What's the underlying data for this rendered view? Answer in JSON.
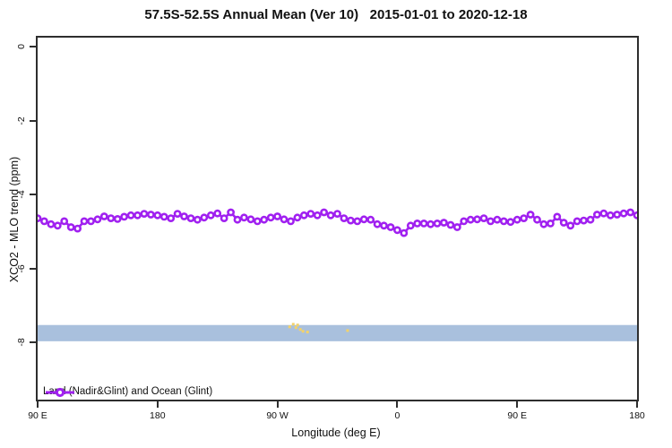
{
  "title": "57.5S-52.5S Annual Mean (Ver 10)   2015-01-01 to 2020-12-18",
  "colors": {
    "series": "#a020f0",
    "reference_band": "#a9c0dd",
    "extra_scatter": "#f3d26a",
    "frame": "#2e2e2e",
    "text": "#111111",
    "background": "#ffffff"
  },
  "chart_data": {
    "type": "line",
    "title": "57.5S-52.5S Annual Mean (Ver 10)   2015-01-01 to 2020-12-18",
    "xlabel": "Longitude (deg E)",
    "ylabel": "XCO2 - MLO trend (ppm)",
    "xlim": [
      90,
      540
    ],
    "ylim_top": 0.25,
    "ylim_bottom": -9.55,
    "grid": false,
    "x_ticks": [
      {
        "lon": 90,
        "label": "90 E"
      },
      {
        "lon": 180,
        "label": "180"
      },
      {
        "lon": 270,
        "label": "90 W"
      },
      {
        "lon": 360,
        "label": "0"
      },
      {
        "lon": 450,
        "label": "90 E"
      },
      {
        "lon": 540,
        "label": "180"
      }
    ],
    "y_ticks": [
      {
        "value": 0,
        "label": "0"
      },
      {
        "value": -2,
        "label": "-2"
      },
      {
        "value": -4,
        "label": "-4"
      },
      {
        "value": -6,
        "label": "-6"
      },
      {
        "value": -8,
        "label": "-8"
      }
    ],
    "series": [
      {
        "name": "Land (Nadir&Glint) and Ocean (Glint)",
        "color": "#a020f0",
        "marker": "open-circle",
        "x_start": 90,
        "x_step": 5,
        "values": [
          -4.64,
          -4.72,
          -4.8,
          -4.84,
          -4.72,
          -4.88,
          -4.92,
          -4.72,
          -4.72,
          -4.67,
          -4.59,
          -4.64,
          -4.66,
          -4.6,
          -4.56,
          -4.56,
          -4.52,
          -4.54,
          -4.56,
          -4.6,
          -4.64,
          -4.52,
          -4.59,
          -4.64,
          -4.68,
          -4.62,
          -4.56,
          -4.51,
          -4.64,
          -4.48,
          -4.68,
          -4.62,
          -4.67,
          -4.72,
          -4.68,
          -4.62,
          -4.59,
          -4.67,
          -4.72,
          -4.62,
          -4.56,
          -4.52,
          -4.56,
          -4.48,
          -4.56,
          -4.52,
          -4.64,
          -4.7,
          -4.72,
          -4.67,
          -4.68,
          -4.8,
          -4.84,
          -4.88,
          -4.96,
          -5.04,
          -4.84,
          -4.78,
          -4.78,
          -4.8,
          -4.78,
          -4.76,
          -4.82,
          -4.88,
          -4.72,
          -4.68,
          -4.67,
          -4.64,
          -4.72,
          -4.68,
          -4.72,
          -4.74,
          -4.68,
          -4.64,
          -4.54,
          -4.68,
          -4.8,
          -4.78,
          -4.6,
          -4.76,
          -4.84,
          -4.72,
          -4.7,
          -4.68,
          -4.54,
          -4.51,
          -4.56,
          -4.54,
          -4.51,
          -4.48,
          -4.56
        ]
      }
    ],
    "reference_band": {
      "y_from": -7.53,
      "y_to": -7.97,
      "color": "#a9c0dd"
    },
    "extra_scatter": {
      "name": "small-yellow-points",
      "color": "#f3d26a",
      "points": [
        {
          "lon": 279.2,
          "value": -7.58
        },
        {
          "lon": 281.9,
          "value": -7.51
        },
        {
          "lon": 283.9,
          "value": -7.6
        },
        {
          "lon": 285.2,
          "value": -7.53
        },
        {
          "lon": 287.2,
          "value": -7.65
        },
        {
          "lon": 289.2,
          "value": -7.7
        },
        {
          "lon": 292.6,
          "value": -7.72
        },
        {
          "lon": 322.7,
          "value": -7.68
        }
      ]
    },
    "legend": {
      "position": "bottom-left",
      "entries": [
        {
          "label": "Land (Nadir&Glint) and Ocean (Glint)",
          "color": "#a020f0"
        }
      ]
    }
  }
}
